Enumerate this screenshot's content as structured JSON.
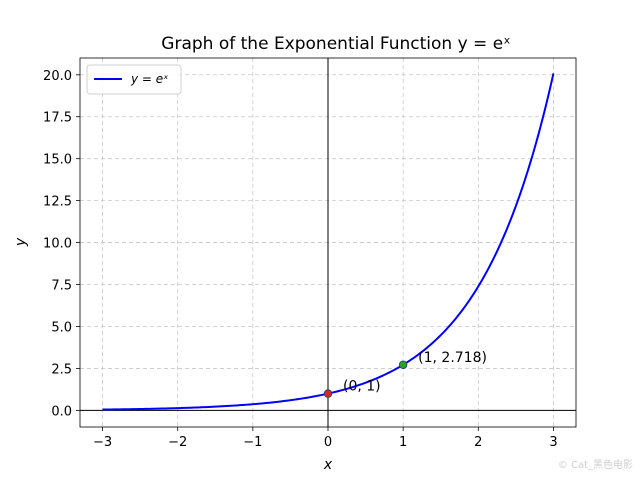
{
  "chart_data": {
    "type": "line",
    "title": "Graph of the Exponential Function y = eˣ",
    "xlabel": "x",
    "ylabel": "y",
    "xlim": [
      -3.3,
      3.3
    ],
    "ylim": [
      -0.99,
      21.0
    ],
    "x_ticks": [
      -3,
      -2,
      -1,
      0,
      1,
      2,
      3
    ],
    "x_tick_labels": [
      "−3",
      "−2",
      "−1",
      "0",
      "1",
      "2",
      "3"
    ],
    "y_ticks": [
      0,
      2.5,
      5,
      7.5,
      10,
      12.5,
      15,
      17.5,
      20
    ],
    "y_tick_labels": [
      "0.0",
      "2.5",
      "5.0",
      "7.5",
      "10.0",
      "12.5",
      "15.0",
      "17.5",
      "20.0"
    ],
    "grid": true,
    "legend_position": "top-left",
    "series": [
      {
        "name": "y = eˣ",
        "color": "#0000ff",
        "x": [
          -3,
          -2.5,
          -2,
          -1.5,
          -1,
          -0.5,
          0,
          0.5,
          1,
          1.5,
          2,
          2.5,
          3
        ],
        "y": [
          0.0498,
          0.0821,
          0.1353,
          0.2231,
          0.3679,
          0.6065,
          1.0,
          1.6487,
          2.7183,
          4.4817,
          7.3891,
          12.1825,
          20.0855
        ]
      }
    ],
    "points": [
      {
        "x": 0,
        "y": 1,
        "color": "#d62728",
        "label": "(0, 1)"
      },
      {
        "x": 1,
        "y": 2.718,
        "color": "#2ca02c",
        "label": "(1, 2.718)"
      }
    ]
  },
  "watermark": "© Cat_黑色电影"
}
